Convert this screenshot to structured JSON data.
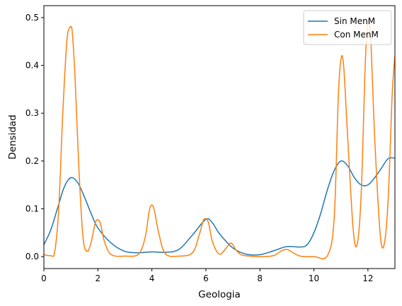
{
  "chart_data": {
    "type": "line",
    "title": "",
    "xlabel": "Geologia",
    "ylabel": "Densidad",
    "xlim": [
      0,
      13
    ],
    "ylim": [
      -0.025,
      0.525
    ],
    "xticks": [
      0,
      2,
      4,
      6,
      8,
      10,
      12
    ],
    "yticks": [
      0.0,
      0.1,
      0.2,
      0.3,
      0.4,
      0.5
    ],
    "ytick_labels": [
      "0.0",
      "0.1",
      "0.2",
      "0.3",
      "0.4",
      "0.5"
    ],
    "grid": false,
    "legend_position": "top-right",
    "series": [
      {
        "name": "Sin MenM",
        "color": "#1f77b4",
        "x": [
          0.0,
          0.25,
          0.5,
          0.75,
          1.0,
          1.25,
          1.5,
          1.75,
          2.0,
          2.5,
          3.0,
          3.5,
          4.0,
          4.5,
          5.0,
          5.5,
          6.0,
          6.25,
          6.5,
          7.0,
          7.5,
          8.0,
          8.5,
          9.0,
          9.5,
          9.75,
          10.0,
          10.25,
          10.5,
          10.75,
          11.0,
          11.25,
          11.5,
          11.75,
          12.0,
          12.25,
          12.5,
          12.75,
          13.0
        ],
        "y": [
          0.025,
          0.055,
          0.1,
          0.145,
          0.165,
          0.155,
          0.125,
          0.09,
          0.06,
          0.028,
          0.011,
          0.008,
          0.01,
          0.009,
          0.015,
          0.045,
          0.078,
          0.07,
          0.048,
          0.018,
          0.005,
          0.004,
          0.012,
          0.021,
          0.02,
          0.025,
          0.05,
          0.09,
          0.14,
          0.18,
          0.2,
          0.19,
          0.165,
          0.15,
          0.15,
          0.165,
          0.185,
          0.205,
          0.206
        ]
      },
      {
        "name": "Con MenM",
        "color": "#ff7f0e",
        "x": [
          0.0,
          0.25,
          0.4,
          0.55,
          0.7,
          0.85,
          0.95,
          1.0,
          1.05,
          1.15,
          1.3,
          1.45,
          1.6,
          1.75,
          1.9,
          2.0,
          2.1,
          2.25,
          2.5,
          3.0,
          3.5,
          3.75,
          3.9,
          4.0,
          4.1,
          4.25,
          4.5,
          5.0,
          5.5,
          5.75,
          5.9,
          6.0,
          6.1,
          6.25,
          6.5,
          6.75,
          6.9,
          7.0,
          7.1,
          7.3,
          7.6,
          8.0,
          8.5,
          8.8,
          9.0,
          9.2,
          9.5,
          10.0,
          10.5,
          10.75,
          10.9,
          11.0,
          11.1,
          11.25,
          11.45,
          11.6,
          11.75,
          11.9,
          12.0,
          12.1,
          12.25,
          12.45,
          12.6,
          12.75,
          12.9,
          13.0
        ],
        "y": [
          0.004,
          0.002,
          0.01,
          0.1,
          0.3,
          0.45,
          0.478,
          0.48,
          0.47,
          0.38,
          0.18,
          0.04,
          0.011,
          0.03,
          0.07,
          0.077,
          0.068,
          0.03,
          0.004,
          0.001,
          0.005,
          0.04,
          0.095,
          0.108,
          0.095,
          0.05,
          0.006,
          0.001,
          0.008,
          0.045,
          0.075,
          0.079,
          0.07,
          0.03,
          0.005,
          0.018,
          0.028,
          0.025,
          0.015,
          0.004,
          0.001,
          0.0,
          0.002,
          0.012,
          0.015,
          0.009,
          0.001,
          0.0,
          0.002,
          0.08,
          0.33,
          0.412,
          0.4,
          0.25,
          0.06,
          0.025,
          0.13,
          0.4,
          0.49,
          0.46,
          0.25,
          0.05,
          0.025,
          0.12,
          0.34,
          0.42
        ]
      }
    ]
  }
}
